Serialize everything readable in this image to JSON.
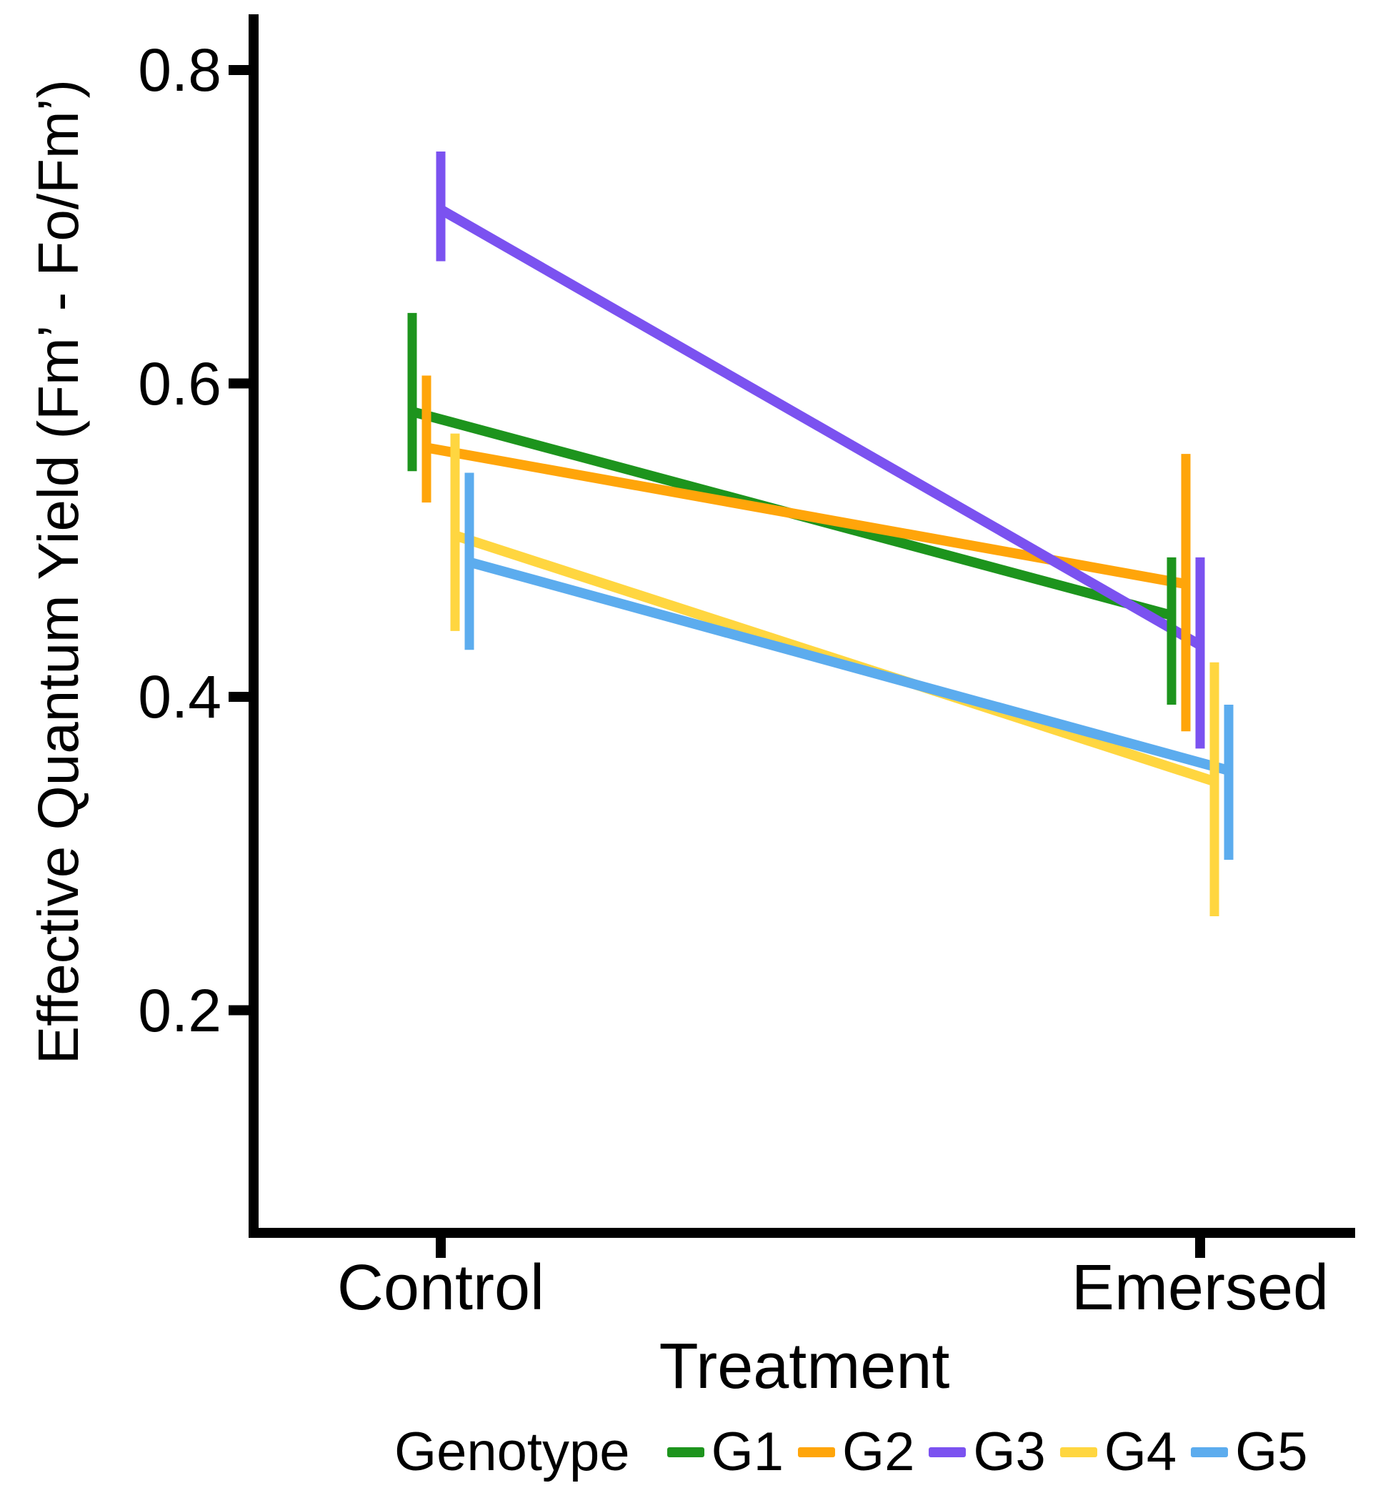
{
  "chart_data": {
    "type": "line",
    "title": "",
    "xlabel": "Treatment",
    "ylabel": "Effective Quantum Yield (Fm’ - Fo/Fm’)",
    "categories": [
      "Control",
      "Emersed"
    ],
    "y_ticks": [
      0.8,
      0.6,
      0.4,
      0.2
    ],
    "y_tick_labels": [
      "0.8",
      "0.6",
      "0.4",
      "0.2"
    ],
    "ylim": [
      0.06,
      0.83
    ],
    "grid": false,
    "error_bars": true,
    "legend_title": "Genotype",
    "legend_position": "bottom",
    "axis_color": "#000000",
    "series": [
      {
        "name": "G1",
        "color": "#1D941D",
        "values": [
          0.582,
          0.452
        ],
        "ymin": [
          0.544,
          0.395
        ],
        "ymax": [
          0.645,
          0.489
        ]
      },
      {
        "name": "G2",
        "color": "#FFA50A",
        "values": [
          0.559,
          0.472
        ],
        "ymin": [
          0.524,
          0.378
        ],
        "ymax": [
          0.605,
          0.555
        ]
      },
      {
        "name": "G3",
        "color": "#7B52F0",
        "values": [
          0.711,
          0.433
        ],
        "ymin": [
          0.678,
          0.367
        ],
        "ymax": [
          0.748,
          0.489
        ]
      },
      {
        "name": "G4",
        "color": "#FFD640",
        "values": [
          0.503,
          0.346
        ],
        "ymin": [
          0.442,
          0.26
        ],
        "ymax": [
          0.568,
          0.422
        ]
      },
      {
        "name": "G5",
        "color": "#5CACEE",
        "values": [
          0.486,
          0.353
        ],
        "ymin": [
          0.43,
          0.296
        ],
        "ymax": [
          0.543,
          0.395
        ]
      }
    ]
  }
}
